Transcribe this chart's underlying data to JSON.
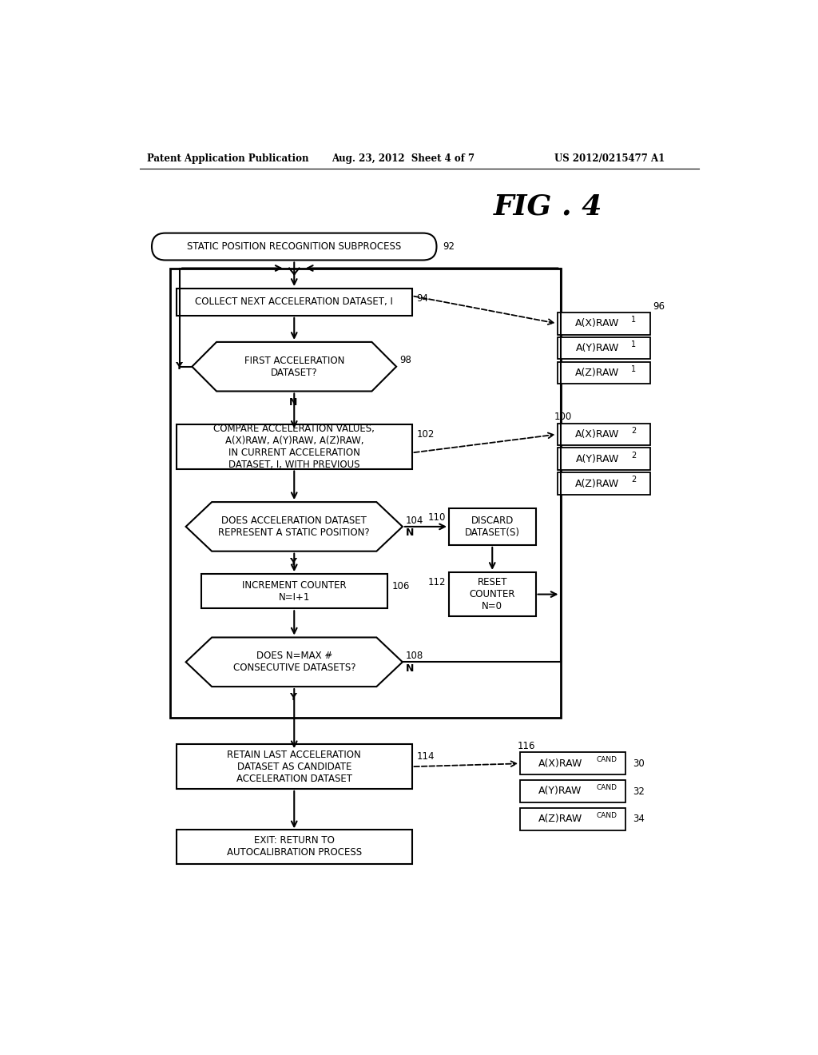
{
  "title": "FIG . 4",
  "header_left": "Patent Application Publication",
  "header_mid": "Aug. 23, 2012  Sheet 4 of 7",
  "header_right": "US 2012/0215477 A1",
  "bg_color": "#ffffff",
  "figsize": [
    10.24,
    13.2
  ],
  "dpi": 100,
  "nodes": {
    "start": {
      "label": "STATIC POSITION RECOGNITION SUBPROCESS",
      "num": "92",
      "type": "stadium"
    },
    "collect": {
      "label": "COLLECT NEXT ACCELERATION DATASET, I",
      "num": "94",
      "type": "rect"
    },
    "first": {
      "label": "FIRST ACCELERATION\nDATASET?",
      "num": "98",
      "type": "hexagon"
    },
    "compare": {
      "label": "COMPARE ACCELERATION VALUES,\nA(X)RAW, A(Y)RAW, A(Z)RAW,\nIN CURRENT ACCELERATION\nDATASET, I, WITH PREVIOUS",
      "num": "102",
      "type": "rect"
    },
    "does104": {
      "label": "DOES ACCELERATION DATASET\nREPRESENT A STATIC POSITION?",
      "num": "104",
      "type": "hexagon"
    },
    "inc": {
      "label": "INCREMENT COUNTER\nN=I+1",
      "num": "106",
      "type": "rect"
    },
    "doesn108": {
      "label": "DOES N=MAX #\nCONSECUTIVE DATASETS?",
      "num": "108",
      "type": "hexagon"
    },
    "retain": {
      "label": "RETAIN LAST ACCELERATION\nDATASET AS CANDIDATE\nACCELERATION DATASET",
      "num": "114",
      "type": "rect"
    },
    "exit": {
      "label": "EXIT: RETURN TO\nAUTOCALIBRATION PROCESS",
      "num": "",
      "type": "rect"
    },
    "discard": {
      "label": "DISCARD\nDATASET(S)",
      "num": "110",
      "type": "rect"
    },
    "reset": {
      "label": "RESET\nCOUNTER\nN=0",
      "num": "112",
      "type": "rect"
    }
  },
  "data_boxes_96": [
    [
      "A(X)RAW",
      "1"
    ],
    [
      "A(Y)RAW",
      "1"
    ],
    [
      "A(Z)RAW",
      "1"
    ]
  ],
  "data_boxes_100": [
    [
      "A(X)RAW",
      "2"
    ],
    [
      "A(Y)RAW",
      "2"
    ],
    [
      "A(Z)RAW",
      "2"
    ]
  ],
  "data_boxes_116": [
    [
      "A(X)RAW",
      "CAND",
      "30"
    ],
    [
      "A(Y)RAW",
      "CAND",
      "32"
    ],
    [
      "A(Z)RAW",
      "CAND",
      "34"
    ]
  ]
}
